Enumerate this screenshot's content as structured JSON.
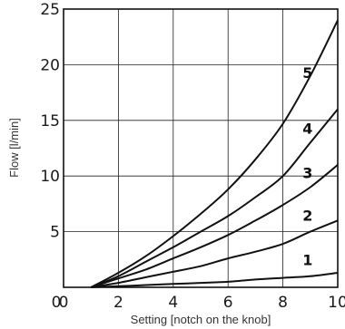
{
  "chart_data": {
    "type": "line",
    "title": "",
    "xlabel": "Setting [notch on the knob]",
    "ylabel": "Flow [l/min]",
    "xlim": [
      0,
      10
    ],
    "ylim": [
      0,
      25
    ],
    "xticks": [
      0,
      2,
      4,
      6,
      8,
      10
    ],
    "yticks": [
      0,
      5,
      10,
      15,
      20,
      25
    ],
    "grid": true,
    "legend": "none",
    "x": [
      1,
      2,
      3,
      4,
      5,
      6,
      7,
      8,
      9,
      10
    ],
    "series": [
      {
        "name": "1",
        "values": [
          0,
          0.1,
          0.2,
          0.3,
          0.4,
          0.5,
          0.7,
          0.85,
          1.0,
          1.3
        ]
      },
      {
        "name": "2",
        "values": [
          0,
          0.4,
          0.9,
          1.4,
          1.9,
          2.6,
          3.2,
          3.9,
          5.0,
          6.0
        ]
      },
      {
        "name": "3",
        "values": [
          0,
          0.8,
          1.6,
          2.6,
          3.6,
          4.7,
          6.0,
          7.4,
          9.0,
          11.0
        ]
      },
      {
        "name": "4",
        "values": [
          0,
          1.0,
          2.3,
          3.6,
          5.0,
          6.4,
          8.1,
          10.0,
          13.0,
          16.0
        ]
      },
      {
        "name": "5",
        "values": [
          0,
          1.3,
          2.8,
          4.6,
          6.6,
          8.8,
          11.5,
          14.7,
          19.0,
          24.0
        ]
      }
    ],
    "curve_labels": [
      {
        "text": "1",
        "x": 8.9,
        "y": 2.0
      },
      {
        "text": "2",
        "x": 8.9,
        "y": 6.0
      },
      {
        "text": "3",
        "x": 8.9,
        "y": 9.8
      },
      {
        "text": "4",
        "x": 8.9,
        "y": 13.8
      },
      {
        "text": "5",
        "x": 8.9,
        "y": 18.8
      }
    ]
  }
}
